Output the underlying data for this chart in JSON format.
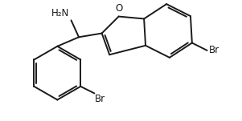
{
  "background": "#ffffff",
  "line_color": "#1a1a1a",
  "text_color": "#1a1a1a",
  "bond_lw": 1.4,
  "font_size": 8.5,
  "figsize": [
    3.01,
    1.51
  ],
  "dpi": 100,
  "xlim": [
    -0.15,
    2.85
  ],
  "ylim": [
    -0.1,
    1.45
  ]
}
